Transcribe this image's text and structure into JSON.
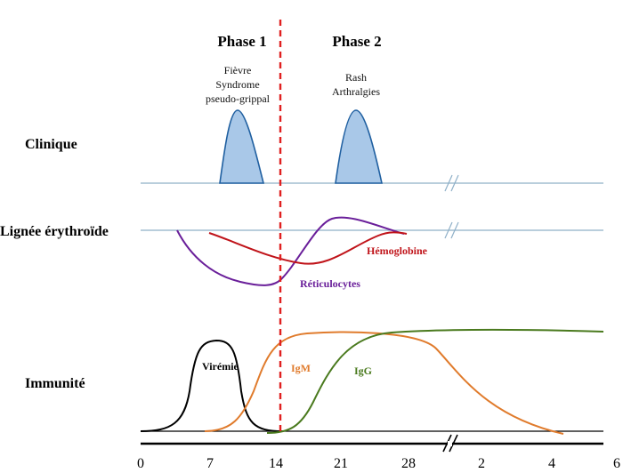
{
  "phases": {
    "phase1": {
      "title": "Phase 1",
      "notes": [
        "Fièvre",
        "Syndrome",
        "pseudo-grippal"
      ]
    },
    "phase2": {
      "title": "Phase 2",
      "notes": [
        "Rash",
        "Arthralgies"
      ]
    }
  },
  "rows": {
    "clinique": "Clinique",
    "erythroide": "Lignée érythroïde",
    "immunite": "Immunité"
  },
  "curves": {
    "hemoglobine": {
      "label": "Hémoglobine",
      "color": "#c0141a"
    },
    "reticulocytes": {
      "label": "Réticulocytes",
      "color": "#6a1f9a"
    },
    "viremie": {
      "label": "Virémie",
      "color": "#000000"
    },
    "igm": {
      "label": "IgM",
      "color": "#e07b2c"
    },
    "igg": {
      "label": "IgG",
      "color": "#4a7a1e"
    }
  },
  "axis": {
    "ticks": [
      "0",
      "7",
      "14",
      "21",
      "28",
      "2",
      "4",
      "6"
    ]
  },
  "colors": {
    "divider": "#e02020",
    "baseline": "#8fb0c8",
    "clinical_fill": "#a9c8e8",
    "clinical_stroke": "#1f5fa0"
  }
}
